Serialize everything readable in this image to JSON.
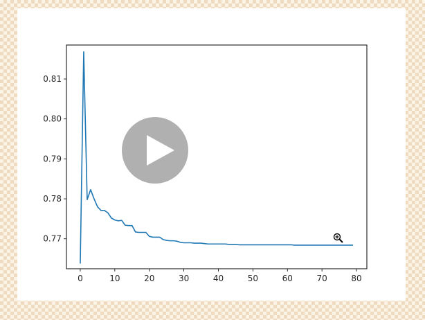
{
  "video": {
    "play_icon": "play-icon",
    "cursor_icon": "zoom-in-cursor-icon"
  },
  "chart_data": {
    "type": "line",
    "title": "",
    "xlabel": "",
    "ylabel": "",
    "xlim": [
      -4,
      83
    ],
    "ylim": [
      0.7625,
      0.8185
    ],
    "x_ticks": [
      0,
      10,
      20,
      30,
      40,
      50,
      60,
      70,
      80
    ],
    "y_ticks": [
      0.77,
      0.78,
      0.79,
      0.8,
      0.81
    ],
    "grid": false,
    "line_color": "#1f77b4",
    "series": [
      {
        "x": [
          0,
          1,
          2,
          3,
          4,
          5,
          6,
          7,
          8,
          9,
          10,
          11,
          12,
          13,
          14,
          15,
          16,
          17,
          18,
          19,
          20,
          21,
          22,
          23,
          24,
          25,
          26,
          27,
          28,
          29,
          30,
          31,
          32,
          33,
          34,
          35,
          36,
          37,
          38,
          39,
          40,
          41,
          42,
          43,
          44,
          45,
          46,
          47,
          48,
          49,
          50,
          51,
          52,
          53,
          54,
          55,
          56,
          57,
          58,
          59,
          60,
          61,
          62,
          63,
          64,
          65,
          66,
          67,
          68,
          69,
          70,
          71,
          72,
          73,
          74,
          75,
          76,
          77,
          78,
          79
        ],
        "values": [
          0.7638,
          0.8168,
          0.7798,
          0.7823,
          0.78,
          0.778,
          0.7771,
          0.7771,
          0.7765,
          0.7752,
          0.7747,
          0.7745,
          0.7746,
          0.7734,
          0.7733,
          0.7733,
          0.7717,
          0.7716,
          0.7716,
          0.7716,
          0.7706,
          0.7704,
          0.7704,
          0.7704,
          0.7698,
          0.7696,
          0.7695,
          0.7695,
          0.7694,
          0.7691,
          0.769,
          0.769,
          0.769,
          0.7689,
          0.7689,
          0.7689,
          0.7688,
          0.7687,
          0.7687,
          0.7687,
          0.7687,
          0.7687,
          0.7687,
          0.7686,
          0.7686,
          0.7686,
          0.7685,
          0.7685,
          0.7685,
          0.7685,
          0.7685,
          0.7685,
          0.7685,
          0.7685,
          0.7685,
          0.7685,
          0.7685,
          0.7685,
          0.7685,
          0.7685,
          0.7685,
          0.7685,
          0.7684,
          0.7684,
          0.7684,
          0.7684,
          0.7684,
          0.7684,
          0.7684,
          0.7684,
          0.7684,
          0.7684,
          0.7684,
          0.7684,
          0.7684,
          0.7684,
          0.7684,
          0.7684,
          0.7684,
          0.7684
        ]
      }
    ]
  }
}
